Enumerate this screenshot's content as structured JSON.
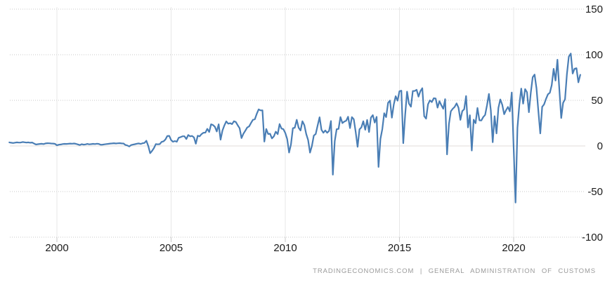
{
  "chart_data": {
    "type": "line",
    "title": "",
    "xlabel": "",
    "ylabel": "",
    "x_tick_years": [
      2000,
      2005,
      2010,
      2015,
      2020
    ],
    "x_tick_labels": [
      "2000",
      "2005",
      "2010",
      "2015",
      "2020"
    ],
    "y_tick_values": [
      150,
      100,
      50,
      0,
      -50,
      -100
    ],
    "y_tick_labels": [
      "150",
      "100",
      "50",
      "0",
      "-50",
      "-100"
    ],
    "ylim": [
      -100,
      150
    ],
    "xlim": [
      1997.75,
      2023.2
    ],
    "legend": "none",
    "grid": {
      "horizontal": "dotted",
      "vertical": "solid",
      "zero_line": "solid"
    },
    "colors": {
      "line": "#4a7eb5",
      "grid_dotted": "#c8c8c8",
      "grid_vertical": "#e7e7e7",
      "zero_line": "#e0deda",
      "tick": "#c8c8c8",
      "label": "#1a1a1a",
      "attribution": "#9a9a9a",
      "background": "#ffffff"
    },
    "series": [
      {
        "frequency": "monthly",
        "start_year": 1997,
        "start_month": 12,
        "end_year": 2022,
        "end_month": 12,
        "values": [
          3.9,
          3.5,
          3.2,
          3.6,
          3.9,
          3.7,
          3.8,
          4.3,
          4.0,
          3.7,
          3.9,
          3.5,
          3.8,
          2.6,
          1.6,
          1.9,
          2.2,
          2.4,
          2.1,
          2.8,
          3.0,
          2.9,
          2.7,
          2.6,
          2.3,
          0.7,
          1.4,
          1.6,
          2.1,
          2.3,
          2.2,
          2.4,
          2.6,
          2.5,
          2.7,
          2.3,
          1.7,
          1.0,
          1.9,
          1.5,
          1.7,
          2.2,
          1.8,
          2.0,
          2.3,
          2.1,
          2.5,
          2.2,
          1.3,
          1.5,
          1.8,
          2.1,
          2.3,
          2.6,
          2.8,
          3.0,
          2.7,
          2.9,
          3.1,
          2.8,
          2.7,
          1.1,
          0.5,
          -0.5,
          1.0,
          1.5,
          1.9,
          2.5,
          2.8,
          2.2,
          3.0,
          3.3,
          5.7,
          0.0,
          -7.9,
          -5.4,
          -2.3,
          2.1,
          1.8,
          2.0,
          4.5,
          5.1,
          7.1,
          10.9,
          11.1,
          6.5,
          4.6,
          5.4,
          4.6,
          9.0,
          9.7,
          10.6,
          10.6,
          7.6,
          12.0,
          10.5,
          11.0,
          9.5,
          2.5,
          11.2,
          10.5,
          13.0,
          14.5,
          14.6,
          18.8,
          15.3,
          23.8,
          22.9,
          21.0,
          15.9,
          23.8,
          6.9,
          16.9,
          22.5,
          26.9,
          24.4,
          25.0,
          23.9,
          27.1,
          26.3,
          22.7,
          19.5,
          8.6,
          13.4,
          16.7,
          20.2,
          21.4,
          25.3,
          28.7,
          29.3,
          35.2,
          40.1,
          39.0,
          39.1,
          4.8,
          18.6,
          13.1,
          13.4,
          8.3,
          10.6,
          15.7,
          12.9,
          24.0,
          19.1,
          18.4,
          14.2,
          7.6,
          -7.2,
          1.7,
          19.5,
          20.0,
          28.7,
          20.0,
          16.9,
          27.1,
          22.9,
          13.1,
          6.5,
          -7.3,
          0.1,
          11.4,
          13.1,
          22.3,
          31.5,
          17.8,
          14.5,
          17.0,
          14.5,
          16.5,
          27.3,
          -31.5,
          5.3,
          18.4,
          18.7,
          31.7,
          25.1,
          26.7,
          27.7,
          32.0,
          19.6,
          31.6,
          29.2,
          15.3,
          -0.9,
          18.2,
          20.4,
          27.1,
          17.8,
          28.5,
          15.2,
          31.1,
          33.8,
          25.6,
          31.9,
          -23.0,
          7.7,
          18.5,
          35.9,
          31.6,
          47.3,
          49.8,
          31.0,
          45.4,
          54.5,
          49.6,
          60.0,
          60.6,
          3.1,
          34.1,
          59.5,
          46.5,
          43.0,
          60.2,
          60.3,
          61.6,
          54.1,
          60.1,
          63.3,
          32.6,
          29.9,
          45.6,
          50.0,
          48.1,
          52.3,
          52.0,
          42.0,
          49.1,
          44.6,
          40.8,
          51.3,
          -9.2,
          23.9,
          38.0,
          40.8,
          42.8,
          46.7,
          42.0,
          28.6,
          38.2,
          40.2,
          54.7,
          20.3,
          33.7,
          -5.0,
          28.8,
          24.9,
          41.6,
          28.1,
          27.9,
          31.7,
          34.0,
          44.7,
          57.1,
          39.2,
          4.1,
          32.6,
          13.8,
          41.7,
          51.0,
          45.1,
          34.8,
          39.2,
          42.8,
          37.9,
          58.6,
          -2.0,
          -62.1,
          19.9,
          45.3,
          62.9,
          46.4,
          62.3,
          58.9,
          37.0,
          58.4,
          75.4,
          78.2,
          63.2,
          37.9,
          13.8,
          42.9,
          45.5,
          51.5,
          56.6,
          58.3,
          66.8,
          84.5,
          71.7,
          94.5,
          62.5,
          30.6,
          47.4,
          51.1,
          78.8,
          97.9,
          101.3,
          79.4,
          84.7,
          85.2,
          69.8,
          78.0
        ]
      }
    ]
  },
  "footer": {
    "attribution_site": "TRADINGECONOMICS.COM",
    "attribution_separator": "|",
    "attribution_source": "GENERAL ADMINISTRATION OF CUSTOMS"
  }
}
